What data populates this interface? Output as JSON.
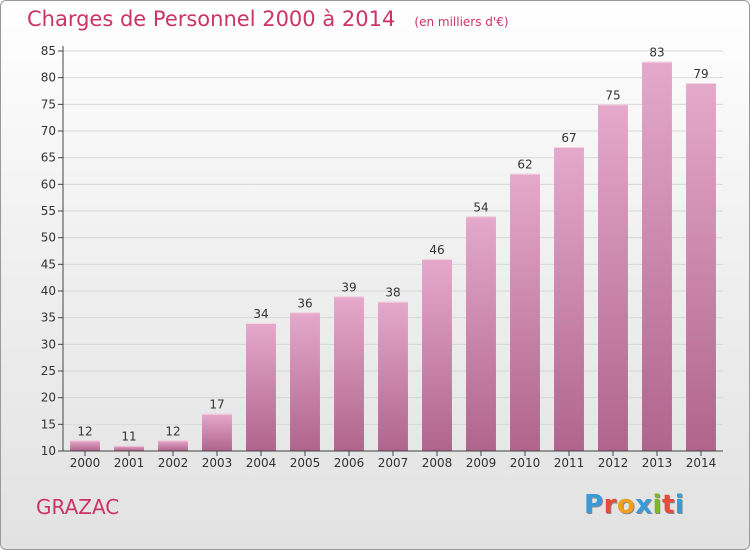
{
  "header": {
    "title": "Charges de Personnel 2000 à 2014",
    "unit": "(en milliers d'€)"
  },
  "footer": {
    "commune": "GRAZAC",
    "logo_text": "Proxiti",
    "logo_colors": [
      "#3a9ad9",
      "#e84b3a",
      "#f0a020",
      "#3a9ad9",
      "#7ab828",
      "#e84b3a",
      "#3a9ad9"
    ]
  },
  "colors": {
    "bar_top": "#e5a9cb",
    "bar_bottom": "#b0648c",
    "accent": "#cc3366",
    "axis": "#444444",
    "grid": "#d8d8d8"
  },
  "chart_data": {
    "type": "bar",
    "categories": [
      "2000",
      "2001",
      "2002",
      "2003",
      "2004",
      "2005",
      "2006",
      "2007",
      "2008",
      "2009",
      "2010",
      "2011",
      "2012",
      "2013",
      "2014"
    ],
    "values": [
      12,
      11,
      12,
      17,
      34,
      36,
      39,
      38,
      46,
      54,
      62,
      67,
      75,
      83,
      79
    ],
    "ylim": [
      10,
      85
    ],
    "yticks": [
      10,
      15,
      20,
      25,
      30,
      35,
      40,
      45,
      50,
      55,
      60,
      65,
      70,
      75,
      80,
      85
    ],
    "grid": true,
    "show_value_labels": true
  }
}
